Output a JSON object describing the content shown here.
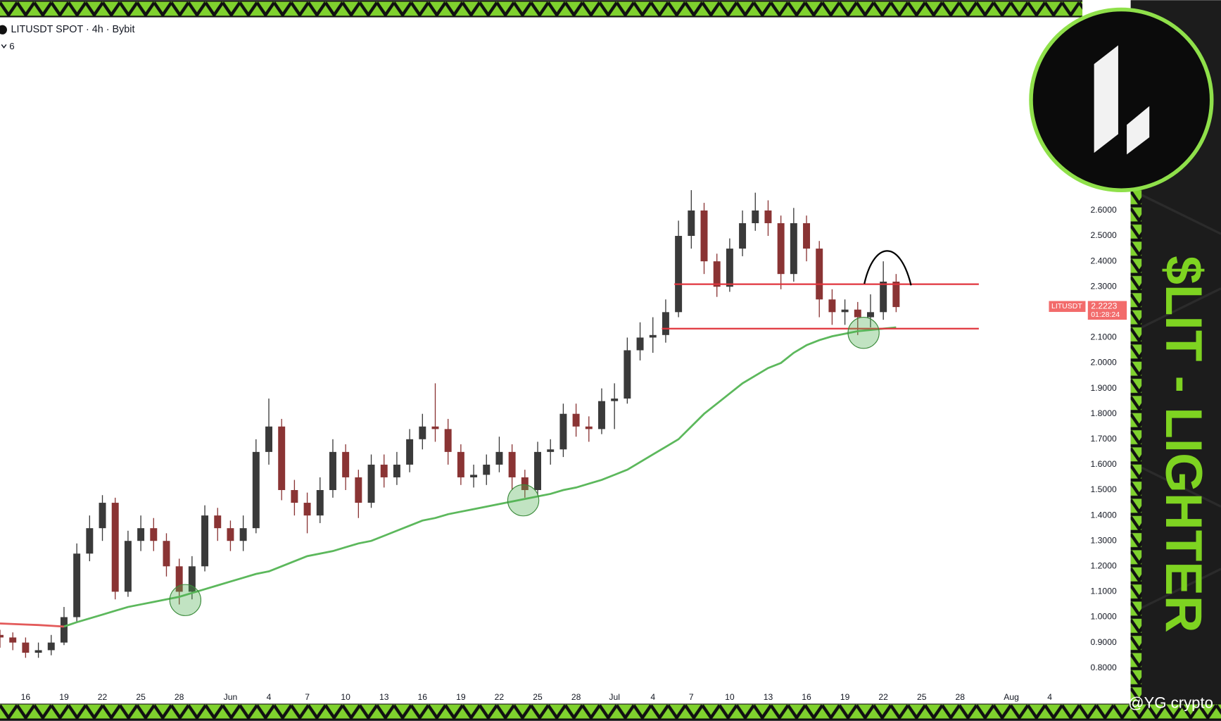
{
  "chart_data": {
    "type": "candlestick",
    "title": "LITUSDT SPOT · 4h · Bybit",
    "indicator_count": 6,
    "categories": [
      null,
      null,
      "16",
      null,
      null,
      "19",
      null,
      null,
      "22",
      null,
      null,
      "25",
      null,
      null,
      "28",
      null,
      null,
      null,
      "Jun",
      null,
      null,
      "4",
      null,
      null,
      "7",
      null,
      null,
      "10",
      null,
      null,
      "13",
      null,
      null,
      "16",
      null,
      null,
      "19",
      null,
      null,
      "22",
      null,
      null,
      "25",
      null,
      null,
      "28",
      null,
      null,
      "Jul",
      null,
      null,
      "4",
      null,
      null,
      "7",
      null,
      null,
      "10",
      null,
      null,
      "13",
      null,
      null,
      "16",
      null,
      null,
      "19",
      null,
      null,
      "22",
      null,
      null,
      "25",
      null,
      null,
      "28",
      null,
      null,
      null,
      "Aug",
      null,
      null,
      "4",
      null
    ],
    "open": [
      0.93,
      0.92,
      0.9,
      0.86,
      0.87,
      0.9,
      1.0,
      1.25,
      1.35,
      1.45,
      1.1,
      1.3,
      1.35,
      1.3,
      1.2,
      1.1,
      1.2,
      1.4,
      1.35,
      1.3,
      1.35,
      1.65,
      1.75,
      1.5,
      1.45,
      1.4,
      1.5,
      1.65,
      1.55,
      1.45,
      1.6,
      1.55,
      1.6,
      1.7,
      1.75,
      1.74,
      1.65,
      1.55,
      1.56,
      1.6,
      1.65,
      1.55,
      1.5,
      1.65,
      1.66,
      1.8,
      1.75,
      1.74,
      1.85,
      1.86,
      2.05,
      2.1,
      2.11,
      2.2,
      2.5,
      2.6,
      2.4,
      2.3,
      2.45,
      2.55,
      2.6,
      2.55,
      2.35,
      2.55,
      2.45,
      2.25,
      2.2,
      2.21,
      2.18,
      2.2,
      2.32,
      null,
      null,
      null,
      null,
      null,
      null,
      null,
      null,
      null,
      null,
      null,
      null,
      null
    ],
    "high": [
      0.95,
      0.94,
      0.92,
      0.9,
      0.93,
      1.04,
      1.29,
      1.4,
      1.48,
      1.47,
      1.34,
      1.4,
      1.39,
      1.33,
      1.23,
      1.24,
      1.44,
      1.43,
      1.38,
      1.4,
      1.7,
      1.86,
      1.78,
      1.54,
      1.49,
      1.55,
      1.7,
      1.68,
      1.58,
      1.64,
      1.64,
      1.65,
      1.74,
      1.8,
      1.92,
      1.78,
      1.68,
      1.6,
      1.64,
      1.71,
      1.68,
      1.58,
      1.69,
      1.7,
      1.84,
      1.84,
      1.79,
      1.9,
      1.92,
      2.1,
      2.16,
      2.18,
      2.25,
      2.56,
      2.68,
      2.63,
      2.43,
      2.49,
      2.6,
      2.67,
      2.64,
      2.58,
      2.61,
      2.58,
      2.48,
      2.29,
      2.25,
      2.24,
      2.27,
      2.4,
      2.35,
      null,
      null,
      null,
      null,
      null,
      null,
      null,
      null,
      null,
      null,
      null,
      null,
      null
    ],
    "low": [
      0.88,
      0.87,
      0.84,
      0.84,
      0.85,
      0.89,
      0.98,
      1.22,
      1.3,
      1.07,
      1.08,
      1.26,
      1.26,
      1.16,
      1.05,
      1.07,
      1.18,
      1.3,
      1.26,
      1.26,
      1.33,
      1.6,
      1.46,
      1.4,
      1.33,
      1.37,
      1.47,
      1.5,
      1.39,
      1.43,
      1.51,
      1.52,
      1.57,
      1.66,
      1.69,
      1.6,
      1.52,
      1.51,
      1.52,
      1.57,
      1.5,
      1.47,
      1.48,
      1.6,
      1.63,
      1.71,
      1.69,
      1.72,
      1.74,
      1.84,
      2.01,
      2.04,
      2.08,
      2.18,
      2.45,
      2.35,
      2.26,
      2.28,
      2.42,
      2.52,
      2.5,
      2.29,
      2.32,
      2.4,
      2.18,
      2.15,
      2.15,
      2.11,
      2.14,
      2.17,
      2.2,
      null,
      null,
      null,
      null,
      null,
      null,
      null,
      null,
      null,
      null,
      null,
      null,
      null
    ],
    "close": [
      0.92,
      0.9,
      0.86,
      0.87,
      0.9,
      1.0,
      1.25,
      1.35,
      1.45,
      1.1,
      1.3,
      1.35,
      1.3,
      1.2,
      1.1,
      1.2,
      1.4,
      1.35,
      1.3,
      1.35,
      1.65,
      1.75,
      1.5,
      1.45,
      1.4,
      1.5,
      1.65,
      1.55,
      1.45,
      1.6,
      1.55,
      1.6,
      1.7,
      1.75,
      1.74,
      1.65,
      1.55,
      1.56,
      1.6,
      1.65,
      1.55,
      1.5,
      1.65,
      1.66,
      1.8,
      1.75,
      1.74,
      1.85,
      1.86,
      2.05,
      2.1,
      2.11,
      2.2,
      2.5,
      2.6,
      2.4,
      2.3,
      2.45,
      2.55,
      2.6,
      2.55,
      2.35,
      2.55,
      2.45,
      2.25,
      2.2,
      2.21,
      2.18,
      2.2,
      2.32,
      2.22,
      null,
      null,
      null,
      null,
      null,
      null,
      null,
      null,
      null,
      null,
      null,
      null,
      null
    ],
    "up_color": "#3a3a3a",
    "down_color": "#8a3434",
    "lines": [
      {
        "color": "#e35a5a",
        "values": [
          0.975,
          0.973,
          0.971,
          0.969,
          0.966,
          0.963,
          null,
          null,
          null,
          null,
          null,
          null,
          null,
          null,
          null,
          null,
          null,
          null,
          null,
          null,
          null,
          null,
          null,
          null,
          null,
          null,
          null,
          null,
          null,
          null,
          null,
          null,
          null,
          null,
          null,
          null,
          null,
          null,
          null,
          null,
          null,
          null,
          null,
          null,
          null,
          null,
          null,
          null,
          null,
          null,
          null,
          null,
          null,
          null,
          null,
          null,
          null,
          null,
          null,
          null,
          null,
          null,
          null,
          null,
          null,
          null,
          null,
          null,
          null,
          null,
          null,
          null,
          null,
          null,
          null,
          null,
          null,
          null,
          null,
          null,
          null,
          null,
          null,
          null
        ]
      },
      {
        "color": "#5cb85c",
        "values": [
          null,
          null,
          null,
          null,
          null,
          0.963,
          0.98,
          0.995,
          1.01,
          1.025,
          1.04,
          1.05,
          1.06,
          1.07,
          1.08,
          1.095,
          1.11,
          1.125,
          1.14,
          1.155,
          1.17,
          1.18,
          1.2,
          1.22,
          1.24,
          1.25,
          1.26,
          1.275,
          1.29,
          1.3,
          1.32,
          1.34,
          1.36,
          1.38,
          1.39,
          1.405,
          1.415,
          1.425,
          1.435,
          1.445,
          1.455,
          1.465,
          1.475,
          1.485,
          1.5,
          1.51,
          1.525,
          1.54,
          1.56,
          1.58,
          1.61,
          1.64,
          1.67,
          1.7,
          1.75,
          1.8,
          1.84,
          1.88,
          1.92,
          1.95,
          1.98,
          2.0,
          2.04,
          2.07,
          2.09,
          2.105,
          2.115,
          2.125,
          2.13,
          2.135,
          2.14,
          null,
          null,
          null,
          null,
          null,
          null,
          null,
          null,
          null,
          null,
          null,
          null,
          null
        ]
      }
    ],
    "levels": [
      {
        "value": 2.31,
        "color": "#e0353d"
      },
      {
        "value": 2.135,
        "color": "#e0353d"
      }
    ],
    "last_price": {
      "symbol": "LITUSDT",
      "value": 2.2223,
      "countdown": "01:28:24",
      "color": "#f26b6b"
    },
    "ylim": [
      0.73,
      3.36
    ],
    "yticks": [
      {
        "value": 0.8,
        "label": "0.8000"
      },
      {
        "value": 0.9,
        "label": "0.9000"
      },
      {
        "value": 1.0,
        "label": "1.0000"
      },
      {
        "value": 1.1,
        "label": "1.1000"
      },
      {
        "value": 1.2,
        "label": "1.2000"
      },
      {
        "value": 1.3,
        "label": "1.3000"
      },
      {
        "value": 1.4,
        "label": "1.4000"
      },
      {
        "value": 1.5,
        "label": "1.5000"
      },
      {
        "value": 1.6,
        "label": "1.6000"
      },
      {
        "value": 1.7,
        "label": "1.7000"
      },
      {
        "value": 1.8,
        "label": "1.8000"
      },
      {
        "value": 1.9,
        "label": "1.9000"
      },
      {
        "value": 2.0,
        "label": "2.0000"
      },
      {
        "value": 2.1,
        "label": "2.1000"
      },
      {
        "value": 2.3,
        "label": "2.3000"
      },
      {
        "value": 2.4,
        "label": "2.4000"
      },
      {
        "value": 2.5,
        "label": "2.5000"
      },
      {
        "value": 2.6,
        "label": "2.6000"
      }
    ],
    "grid": false
  },
  "banner": "$LIT - LIGHTER",
  "watermark": "@YG crypto"
}
